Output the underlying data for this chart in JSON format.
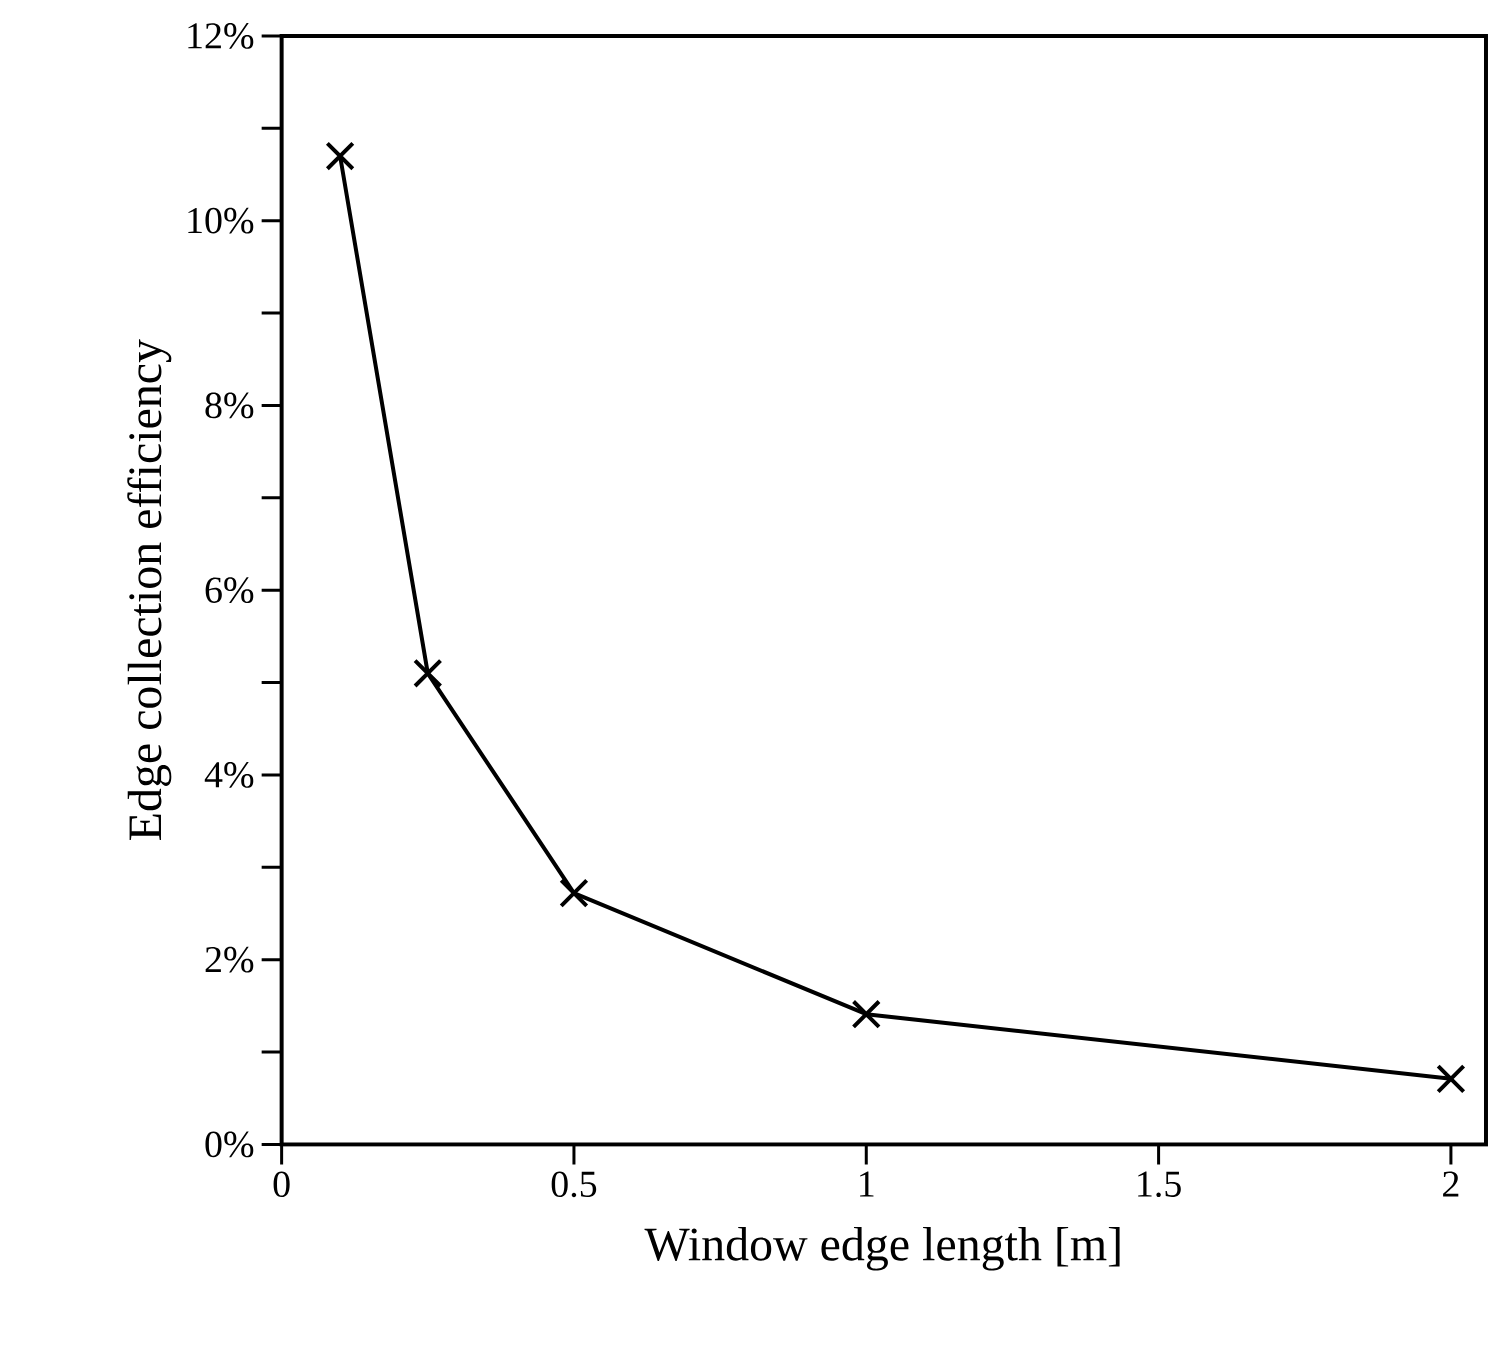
{
  "chart_data": {
    "type": "line",
    "xlabel": "Window edge length [m]",
    "ylabel": "Edge collection efficiency",
    "x": [
      0.1,
      0.25,
      0.5,
      1,
      2
    ],
    "series": [
      {
        "color": "#000000",
        "values": [
          10.7,
          5.1,
          2.72,
          1.41,
          0.71
        ]
      }
    ],
    "xlim": [
      0,
      2.06
    ],
    "ylim": [
      0,
      12
    ],
    "xticks": [
      0,
      0.5,
      1,
      1.5,
      2
    ],
    "yticks": [
      {
        "value": 0,
        "label": "0%"
      },
      {
        "value": 1,
        "label": null
      },
      {
        "value": 2,
        "label": "2%"
      },
      {
        "value": 3,
        "label": null
      },
      {
        "value": 4,
        "label": "4%"
      },
      {
        "value": 5,
        "label": null
      },
      {
        "value": 6,
        "label": "6%"
      },
      {
        "value": 7,
        "label": null
      },
      {
        "value": 8,
        "label": "8%"
      },
      {
        "value": 9,
        "label": null
      },
      {
        "value": 10,
        "label": "10%"
      },
      {
        "value": 11,
        "label": null
      },
      {
        "value": 12,
        "label": "12%"
      }
    ],
    "marker": "cross",
    "line_style": "solid"
  }
}
